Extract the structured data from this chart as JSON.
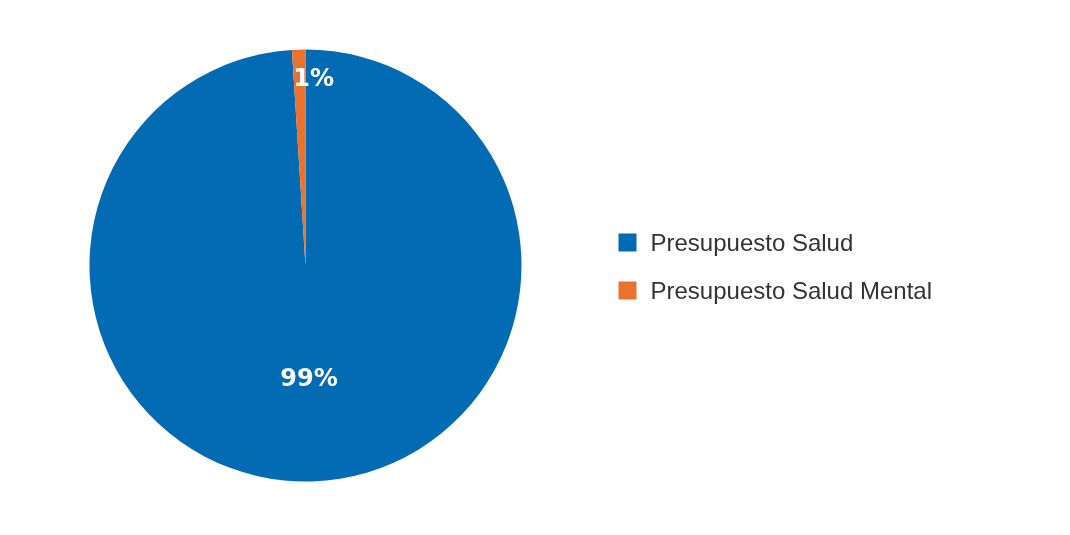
{
  "chart_data": {
    "type": "pie",
    "categories": [
      "Presupuesto Salud",
      "Presupuesto Salud Mental"
    ],
    "values": [
      99,
      1
    ],
    "colors": [
      "#036bb4",
      "#e8722e"
    ],
    "value_labels": [
      "99%",
      "1%"
    ],
    "legend": "right"
  }
}
